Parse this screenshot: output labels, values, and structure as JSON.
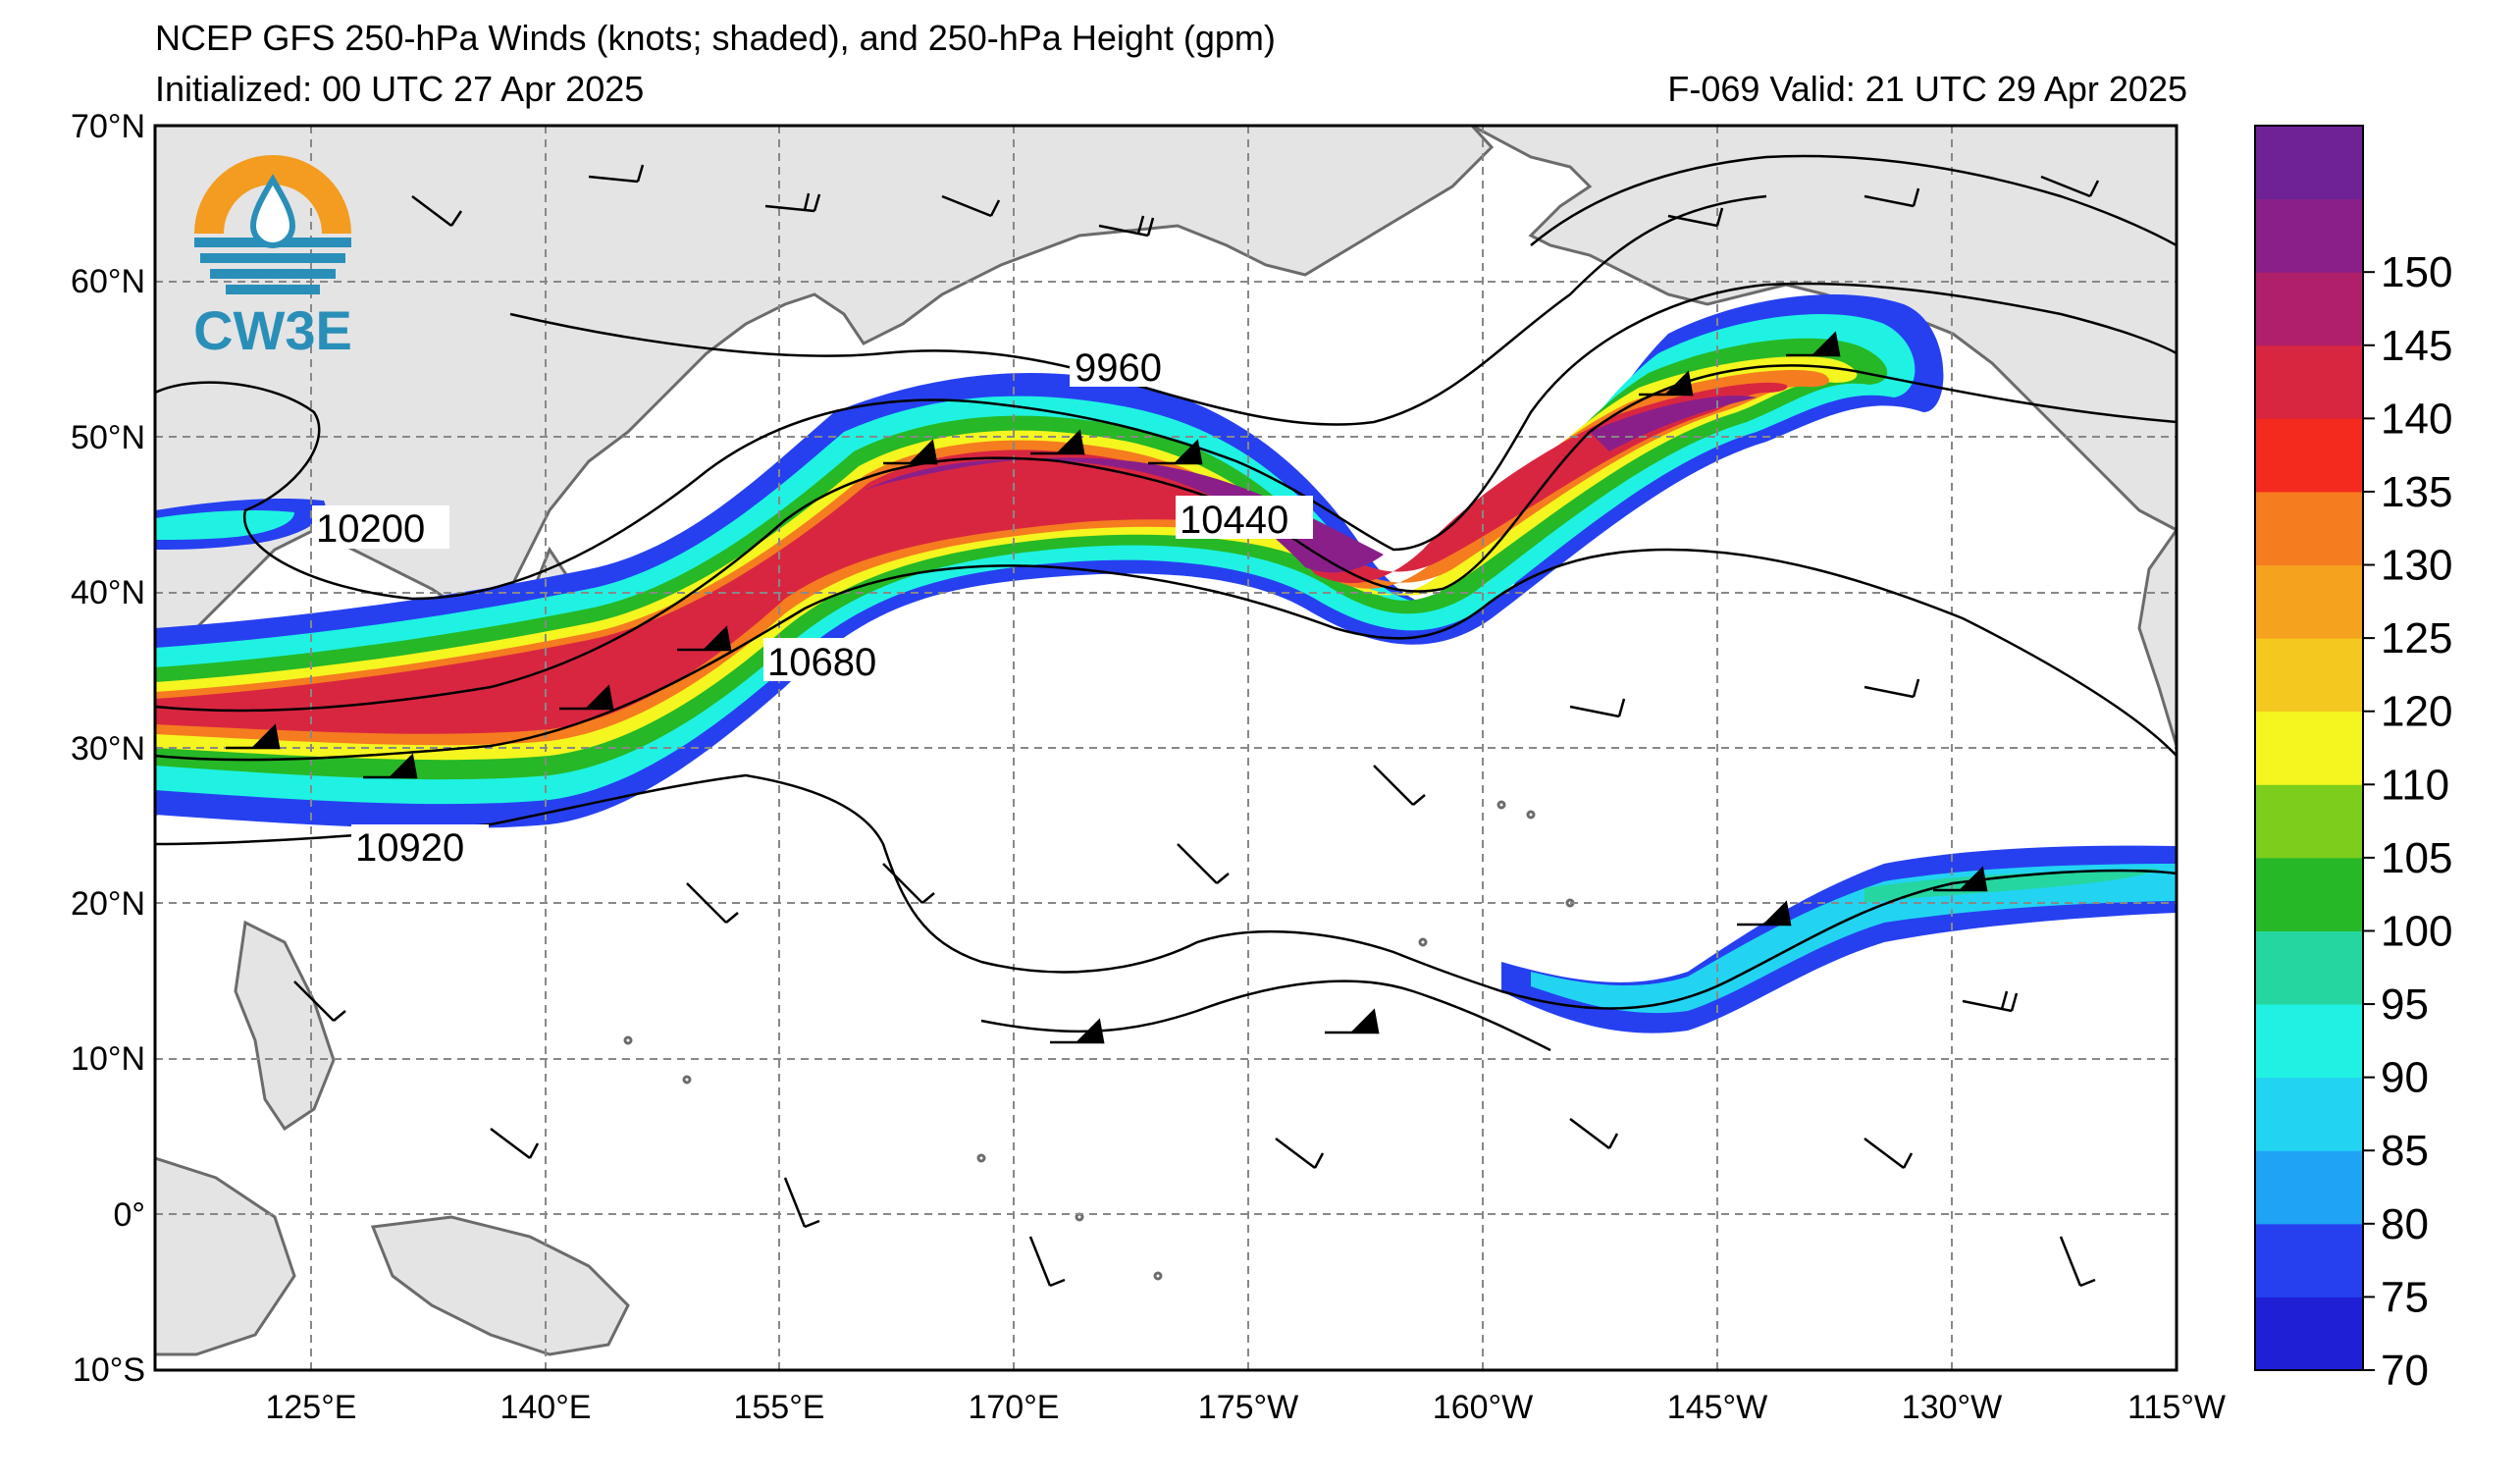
{
  "header": {
    "title": "NCEP GFS 250-hPa Winds (knots; shaded), and 250-hPa Height (gpm)",
    "initialized": "Initialized: 00 UTC 27 Apr 2025",
    "valid": "F-069  Valid: 21 UTC 29 Apr 2025"
  },
  "logo": {
    "text": "CW3E",
    "ring_top_color": "#f39c1f",
    "ring_bottom_color": "#2a8fb8",
    "text_color": "#2a8fb8"
  },
  "map": {
    "lat_labels": [
      "70°N",
      "60°N",
      "50°N",
      "40°N",
      "30°N",
      "20°N",
      "10°N",
      "0°",
      "10°S"
    ],
    "lon_labels": [
      "125°E",
      "140°E",
      "155°E",
      "170°E",
      "175°W",
      "160°W",
      "145°W",
      "130°W",
      "115°W"
    ],
    "contour_labels": [
      "9960",
      "10200",
      "10440",
      "10680",
      "10920"
    ],
    "land_color": "#e4e4e4",
    "coast_color": "#6b6b6b"
  },
  "colorbar": {
    "levels": [
      {
        "value": "70",
        "color": "#1f1fd6"
      },
      {
        "value": "75",
        "color": "#2640f0"
      },
      {
        "value": "80",
        "color": "#1fa3f5"
      },
      {
        "value": "85",
        "color": "#22d4f2"
      },
      {
        "value": "90",
        "color": "#1ff2e2"
      },
      {
        "value": "95",
        "color": "#26d6a0"
      },
      {
        "value": "100",
        "color": "#26b826"
      },
      {
        "value": "105",
        "color": "#7ccd1c"
      },
      {
        "value": "110",
        "color": "#f5f51f"
      },
      {
        "value": "120",
        "color": "#f5c81f"
      },
      {
        "value": "125",
        "color": "#f5a21f"
      },
      {
        "value": "130",
        "color": "#f57c1f"
      },
      {
        "value": "135",
        "color": "#f52a1f"
      },
      {
        "value": "140",
        "color": "#d92640"
      },
      {
        "value": "145",
        "color": "#b01f6a"
      },
      {
        "value": "150",
        "color": "#8a1f8a"
      },
      {
        "value": "",
        "color": "#6e2296"
      }
    ],
    "tick_labels": [
      "150",
      "145",
      "140",
      "135",
      "130",
      "125",
      "120",
      "110",
      "105",
      "100",
      "95",
      "90",
      "85",
      "80",
      "75",
      "70"
    ]
  }
}
